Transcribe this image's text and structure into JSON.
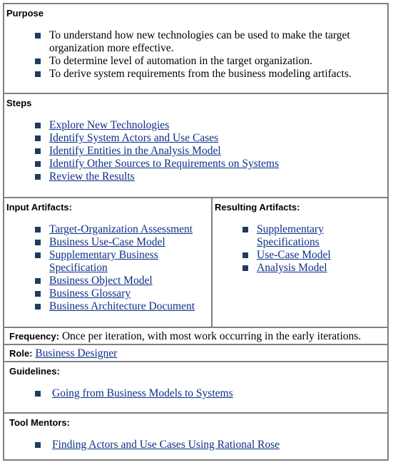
{
  "purpose": {
    "heading": "Purpose",
    "items": [
      "To understand how new technologies can be used to make the target organization more effective.",
      "To determine level of automation in the target organization.",
      "To derive system requirements from the business modeling artifacts."
    ]
  },
  "steps": {
    "heading": "Steps",
    "items": [
      "Explore New Technologies",
      "Identify System Actors and Use Cases",
      "Identify Entities in the Analysis Model",
      "Identify Other Sources to Requirements on Systems",
      "Review the Results"
    ]
  },
  "input_artifacts": {
    "heading": "Input Artifacts:",
    "items": [
      "Target-Organization Assessment",
      "Business Use-Case Model",
      "Supplementary Business Specification",
      "Business Object Model",
      "Business Glossary",
      "Business Architecture Document"
    ]
  },
  "resulting_artifacts": {
    "heading": "Resulting Artifacts:",
    "items": [
      "Supplementary Specifications",
      "Use-Case Model",
      "Analysis Model"
    ]
  },
  "frequency": {
    "label": "Frequency:",
    "text": " Once per iteration, with most work occurring in the early iterations."
  },
  "role": {
    "label": "Role:",
    "link": "Business Designer"
  },
  "guidelines": {
    "heading": "Guidelines:",
    "items": [
      "Going from Business Models to Systems"
    ]
  },
  "tool_mentors": {
    "heading": "Tool Mentors:",
    "items": [
      "Finding Actors and Use Cases Using Rational Rose"
    ]
  },
  "colors": {
    "border": "#808080",
    "link": "#0b2f8a",
    "bullet": "#1f3c5e"
  }
}
